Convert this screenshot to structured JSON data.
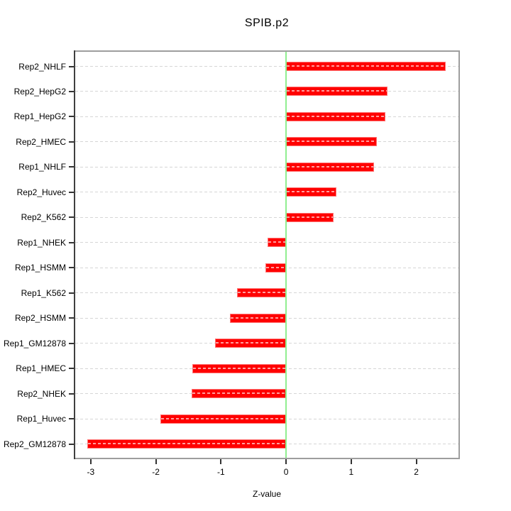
{
  "chart_data": {
    "type": "bar",
    "orientation": "horizontal",
    "title": "SPIB.p2",
    "xlabel": "Z-value",
    "ylabel": "",
    "categories": [
      "Rep2_NHLF",
      "Rep2_HepG2",
      "Rep1_HepG2",
      "Rep2_HMEC",
      "Rep1_NHLF",
      "Rep2_Huvec",
      "Rep2_K562",
      "Rep1_NHEK",
      "Rep1_HSMM",
      "Rep1_K562",
      "Rep2_HSMM",
      "Rep1_GM12878",
      "Rep1_HMEC",
      "Rep2_NHEK",
      "Rep1_Huvec",
      "Rep2_GM12878"
    ],
    "values": [
      2.45,
      1.56,
      1.53,
      1.39,
      1.35,
      0.77,
      0.73,
      -0.28,
      -0.32,
      -0.75,
      -0.86,
      -1.09,
      -1.44,
      -1.45,
      -1.93,
      -3.05
    ],
    "xlim": [
      -3.26,
      2.67
    ],
    "xticks": [
      "-3",
      "-2",
      "-1",
      "0",
      "1",
      "2"
    ],
    "xtick_values": [
      -3,
      -2,
      -1,
      0,
      1,
      2
    ],
    "grid": "dotted horizontal per category, full width",
    "legend": "none",
    "colors": {
      "bar_fill": "#ff0000",
      "bar_border": "#ff7777",
      "bar_grid_overlay": "#ff9e9e",
      "zero_line": "#90ee90",
      "gridline": "#d6d6d6",
      "plot_box_border": "#9e9e9e",
      "axis_line": "#3f3f3f",
      "text": "#000000",
      "background": "#ffffff"
    }
  }
}
